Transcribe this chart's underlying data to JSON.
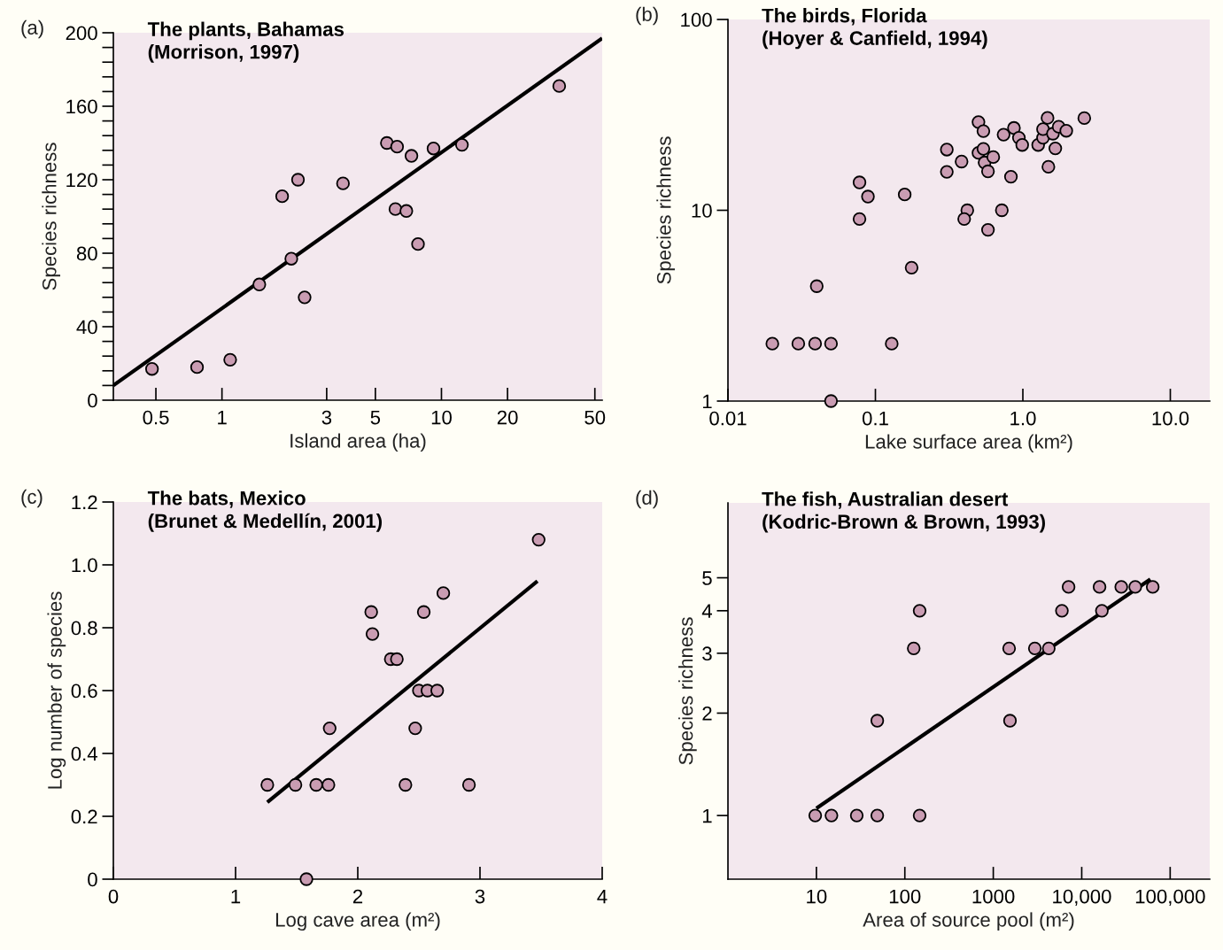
{
  "chart_data": [
    {
      "type": "scatter",
      "title": "The plants, Bahamas\n(Morrison, 1997)",
      "xlabel": "Island area (ha)",
      "ylabel": "Species richness",
      "annotations": [
        "(a)"
      ],
      "log": "x",
      "grid": false,
      "xlim": [
        0.32,
        54
      ],
      "ylim": [
        0,
        200
      ],
      "xticks": [
        0.5,
        1,
        3,
        5,
        10,
        20,
        50
      ],
      "yticks": [
        0,
        {
          "value": 8,
          "label": null
        },
        {
          "value": 16,
          "label": null
        },
        {
          "value": 24,
          "label": null
        },
        {
          "value": 32,
          "label": null
        },
        40,
        {
          "value": 48,
          "label": null
        },
        {
          "value": 56,
          "label": null
        },
        {
          "value": 64,
          "label": null
        },
        {
          "value": 72,
          "label": null
        },
        80,
        {
          "value": 88,
          "label": null
        },
        {
          "value": 96,
          "label": null
        },
        {
          "value": 104,
          "label": null
        },
        {
          "value": 112,
          "label": null
        },
        120,
        {
          "value": 128,
          "label": null
        },
        {
          "value": 136,
          "label": null
        },
        {
          "value": 144,
          "label": null
        },
        {
          "value": 152,
          "label": null
        },
        160,
        {
          "value": 168,
          "label": null
        },
        {
          "value": 176,
          "label": null
        },
        {
          "value": 184,
          "label": null
        },
        {
          "value": 192,
          "label": null
        },
        200
      ],
      "series": [
        {
          "marker": "circle",
          "color": "#c99cb2",
          "x": [
            0.48,
            0.77,
            1.09,
            1.48,
            1.88,
            2.07,
            2.22,
            2.38,
            3.56,
            5.64,
            6.28,
            7.3,
            6.17,
            6.92,
            7.82,
            9.2,
            12.4,
            34.4
          ],
          "values": [
            17,
            18,
            22,
            63,
            111,
            77,
            120,
            56,
            118,
            140,
            138,
            133,
            104,
            103,
            85,
            137,
            139,
            171
          ]
        },
        {
          "type": "line",
          "color": "#000000",
          "x": [
            0.32,
            54
          ],
          "values": [
            8,
            197
          ]
        }
      ]
    },
    {
      "type": "scatter",
      "title": "The birds, Florida\n(Hoyer & Canfield, 1994)",
      "xlabel": "Lake surface area (km²)",
      "ylabel": "Species richness",
      "annotations": [
        "(b)"
      ],
      "log": "xy",
      "grid": false,
      "xlim": [
        0.01,
        18.5
      ],
      "ylim": [
        1,
        100
      ],
      "xticks": [
        {
          "value": 0.01,
          "label": "0.01"
        },
        0.1,
        {
          "value": 1,
          "label": "1.0"
        },
        {
          "value": 10,
          "label": "10.0"
        }
      ],
      "yticks": [
        1,
        10,
        100
      ],
      "series": [
        {
          "marker": "circle",
          "color": "#c99cb2",
          "x": [
            0.02,
            0.03,
            0.039,
            0.05,
            0.129,
            0.05,
            0.04,
            0.078,
            0.089,
            0.078,
            0.158,
            0.176,
            0.305,
            0.305,
            0.384,
            0.42,
            0.4,
            0.5,
            0.54,
            0.5,
            0.54,
            0.55,
            0.63,
            0.58,
            0.58,
            0.83,
            0.72,
            0.74,
            0.87,
            0.94,
            0.99,
            1.27,
            1.37,
            1.37,
            1.47,
            1.6,
            1.75,
            1.97,
            1.66,
            1.49,
            2.61
          ],
          "values": [
            2,
            2,
            2,
            2,
            2,
            1,
            4,
            14,
            11.8,
            9,
            12.1,
            5,
            20.8,
            15.9,
            18,
            10,
            9,
            29,
            26,
            20,
            21,
            17.8,
            19,
            16,
            7.9,
            15,
            10,
            24.9,
            27,
            24,
            22,
            22,
            24,
            26.6,
            30.5,
            25.2,
            27.4,
            26.1,
            21.1,
            16.9,
            30.4
          ]
        }
      ]
    },
    {
      "type": "scatter",
      "title": "The bats, Mexico\n(Brunet & Medellín, 2001)",
      "xlabel": "Log cave area (m²)",
      "ylabel": "Log number of species",
      "annotations": [
        "(c)"
      ],
      "grid": false,
      "xlim": [
        0,
        4
      ],
      "ylim": [
        0,
        1.2
      ],
      "xticks": [
        0,
        1,
        2,
        3,
        4
      ],
      "yticks": [
        0,
        0.2,
        0.4,
        0.6,
        0.8,
        {
          "value": 1,
          "label": "1.0"
        },
        1.2
      ],
      "series": [
        {
          "marker": "circle",
          "color": "#c99cb2",
          "x": [
            1.26,
            1.49,
            1.66,
            1.76,
            2.39,
            2.91,
            1.58,
            1.77,
            2.47,
            2.5,
            2.57,
            2.65,
            2.27,
            2.32,
            2.11,
            2.12,
            2.54,
            2.7,
            3.48
          ],
          "values": [
            0.3,
            0.3,
            0.3,
            0.3,
            0.3,
            0.3,
            0,
            0.48,
            0.48,
            0.6,
            0.6,
            0.6,
            0.7,
            0.7,
            0.85,
            0.78,
            0.85,
            0.91,
            1.08
          ]
        },
        {
          "type": "line",
          "color": "#000000",
          "x": [
            1.26,
            3.47
          ],
          "values": [
            0.245,
            0.948
          ]
        }
      ]
    },
    {
      "type": "scatter",
      "title": "The fish, Australian desert\n(Kodric-Brown & Brown, 1993)",
      "xlabel": "Area of source pool (m²)",
      "ylabel": "Species richness",
      "annotations": [
        "(d)"
      ],
      "log": "xy",
      "grid": false,
      "xlim": [
        1,
        280000
      ],
      "ylim": [
        0.65,
        8.3
      ],
      "xticks": [
        10,
        100,
        1000,
        {
          "value": 10000,
          "label": "10,000"
        },
        {
          "value": 100000,
          "label": "100,000"
        }
      ],
      "yticks": [
        1,
        2,
        3,
        4,
        5
      ],
      "series": [
        {
          "marker": "circle",
          "color": "#c99cb2",
          "x": [
            9.7,
            14.8,
            28.6,
            48.8,
            147,
            48.8,
            126,
            147,
            1510,
            1545,
            2950,
            4240,
            5970,
            7100,
            15900,
            16900,
            28000,
            40300,
            63500
          ],
          "values": [
            1,
            1,
            1,
            1,
            1,
            1.9,
            3.1,
            4,
            3.1,
            1.9,
            3.1,
            3.1,
            4,
            4.7,
            4.7,
            4,
            4.7,
            4.7,
            4.7
          ]
        },
        {
          "type": "line",
          "color": "#000000",
          "x": [
            10,
            59700
          ],
          "values": [
            1.05,
            4.95
          ]
        }
      ]
    }
  ]
}
